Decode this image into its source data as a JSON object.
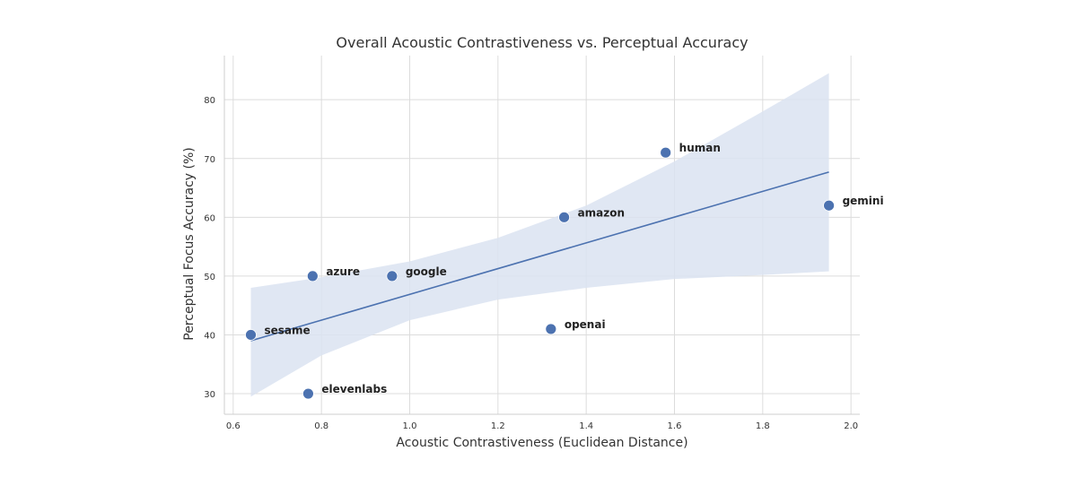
{
  "chart_data": {
    "type": "scatter",
    "title": "Overall Acoustic Contrastiveness vs. Perceptual Accuracy",
    "xlabel": "Acoustic Contrastiveness (Euclidean Distance)",
    "ylabel": "Perceptual Focus Accuracy (%)",
    "xlim": [
      0.58,
      2.02
    ],
    "ylim": [
      26.5,
      87.5
    ],
    "xticks": [
      "0.6",
      "0.8",
      "1.0",
      "1.2",
      "1.4",
      "1.6",
      "1.8",
      "2.0"
    ],
    "yticks": [
      "30",
      "40",
      "50",
      "60",
      "70",
      "80"
    ],
    "grid": true,
    "colors": {
      "points": "#4c72b0",
      "line": "#4c72b0",
      "band": "#dbe3f1",
      "grid": "#dcdcdc"
    },
    "points": [
      {
        "label": "sesame",
        "x": 0.64,
        "y": 40
      },
      {
        "label": "elevenlabs",
        "x": 0.77,
        "y": 30
      },
      {
        "label": "azure",
        "x": 0.78,
        "y": 50
      },
      {
        "label": "google",
        "x": 0.96,
        "y": 50
      },
      {
        "label": "openai",
        "x": 1.32,
        "y": 41
      },
      {
        "label": "amazon",
        "x": 1.35,
        "y": 60
      },
      {
        "label": "human",
        "x": 1.58,
        "y": 71
      },
      {
        "label": "gemini",
        "x": 1.95,
        "y": 62
      }
    ],
    "regression": {
      "x": [
        0.64,
        1.95
      ],
      "y": [
        39.0,
        67.7
      ]
    },
    "confidence_band": {
      "x": [
        0.64,
        0.8,
        1.0,
        1.2,
        1.4,
        1.6,
        1.8,
        1.95
      ],
      "upper": [
        48.0,
        49.8,
        52.5,
        56.5,
        62.0,
        69.5,
        78.0,
        84.5
      ],
      "lower": [
        29.5,
        36.5,
        42.5,
        46.0,
        48.0,
        49.5,
        50.2,
        50.8
      ]
    }
  }
}
